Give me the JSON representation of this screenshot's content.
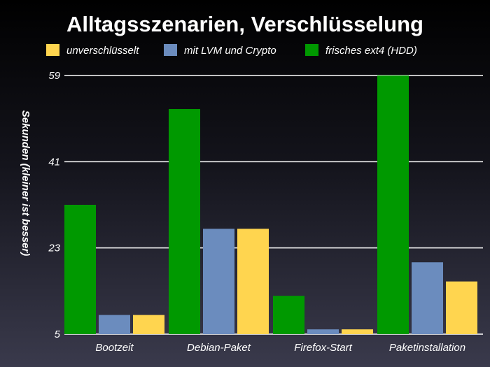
{
  "chart_data": {
    "type": "bar",
    "title": "Alltagsszenarien, Verschlüsselung",
    "ylabel": "Sekunden (kleiner ist besser)",
    "xlabel": "",
    "ylim": [
      5,
      59
    ],
    "yticks": [
      5,
      23,
      41,
      59
    ],
    "grid": true,
    "legend_position": "top",
    "categories": [
      "Bootzeit",
      "Debian-Paket",
      "Firefox-Start",
      "Paketinstallation"
    ],
    "series": [
      {
        "name": "frisches ext4 (HDD)",
        "color": "#009900",
        "values": [
          32,
          52,
          13,
          59
        ]
      },
      {
        "name": "mit LVM und Crypto",
        "color": "#6b8cbe",
        "values": [
          9,
          27,
          6,
          20
        ]
      },
      {
        "name": "unverschlüsselt",
        "color": "#ffd54f",
        "values": [
          9,
          27,
          6,
          16
        ]
      }
    ],
    "legend_order": [
      "unverschlüsselt",
      "mit LVM und Crypto",
      "frisches ext4 (HDD)"
    ]
  }
}
